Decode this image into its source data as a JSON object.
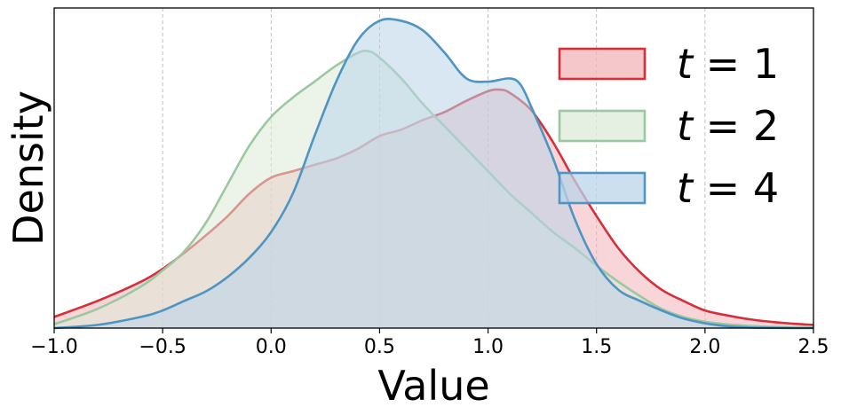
{
  "chart_data": {
    "type": "area",
    "title": "",
    "xlabel": "Value",
    "ylabel": "Density",
    "xlim": [
      -1.0,
      2.5
    ],
    "ylim": [
      0,
      1.0
    ],
    "x_ticks": [
      "−1.0",
      "−0.5",
      "0.0",
      "0.5",
      "1.0",
      "1.5",
      "2.0",
      "2.5"
    ],
    "x_tick_values": [
      -1.0,
      -0.5,
      0.0,
      0.5,
      1.0,
      1.5,
      2.0,
      2.5
    ],
    "show_y_ticks": false,
    "grid": {
      "x": true,
      "y": false,
      "style": "dashed"
    },
    "legend_placement": "top-right",
    "series": [
      {
        "name": "t = 1",
        "label_var": "t",
        "label_eq": " = 1",
        "color": "#d62f3a",
        "fill": "#f2b3b8",
        "x": [
          -1.0,
          -0.8,
          -0.6,
          -0.5,
          -0.4,
          -0.3,
          -0.2,
          -0.1,
          0.0,
          0.1,
          0.2,
          0.3,
          0.4,
          0.5,
          0.6,
          0.7,
          0.8,
          0.9,
          1.0,
          1.05,
          1.1,
          1.2,
          1.3,
          1.4,
          1.5,
          1.6,
          1.7,
          1.8,
          1.9,
          2.0,
          2.1,
          2.2,
          2.3,
          2.4,
          2.5
        ],
        "y": [
          0.035,
          0.085,
          0.145,
          0.185,
          0.235,
          0.29,
          0.35,
          0.42,
          0.47,
          0.49,
          0.51,
          0.53,
          0.56,
          0.6,
          0.62,
          0.65,
          0.675,
          0.71,
          0.74,
          0.745,
          0.735,
          0.68,
          0.58,
          0.46,
          0.35,
          0.25,
          0.175,
          0.12,
          0.085,
          0.055,
          0.04,
          0.028,
          0.02,
          0.014,
          0.01
        ]
      },
      {
        "name": "t = 2",
        "label_var": "t",
        "label_eq": " = 2",
        "color": "#9cc8a1",
        "fill": "#dcebd9",
        "x": [
          -1.0,
          -0.8,
          -0.6,
          -0.5,
          -0.4,
          -0.3,
          -0.2,
          -0.1,
          0.0,
          0.1,
          0.2,
          0.3,
          0.4,
          0.45,
          0.5,
          0.6,
          0.7,
          0.8,
          0.9,
          1.0,
          1.1,
          1.2,
          1.3,
          1.4,
          1.5,
          1.6,
          1.7,
          1.8,
          1.9,
          2.0,
          2.1,
          2.2,
          2.3,
          2.4,
          2.5
        ],
        "y": [
          0.012,
          0.06,
          0.13,
          0.18,
          0.24,
          0.33,
          0.45,
          0.57,
          0.66,
          0.72,
          0.77,
          0.82,
          0.86,
          0.865,
          0.845,
          0.78,
          0.7,
          0.63,
          0.56,
          0.49,
          0.42,
          0.36,
          0.3,
          0.25,
          0.195,
          0.145,
          0.1,
          0.06,
          0.035,
          0.02,
          0.012,
          0.007,
          0.004,
          0.002,
          0.001
        ]
      },
      {
        "name": "t = 4",
        "label_var": "t",
        "label_eq": " = 4",
        "color": "#4f95c2",
        "fill": "#bad4ea",
        "x": [
          -1.0,
          -0.8,
          -0.6,
          -0.5,
          -0.4,
          -0.3,
          -0.2,
          -0.1,
          0.0,
          0.1,
          0.2,
          0.3,
          0.4,
          0.5,
          0.6,
          0.7,
          0.8,
          0.9,
          1.0,
          1.1,
          1.15,
          1.2,
          1.3,
          1.4,
          1.5,
          1.6,
          1.7,
          1.8,
          1.9,
          2.0,
          2.1,
          2.2,
          2.3,
          2.4,
          2.5
        ],
        "y": [
          0.0,
          0.01,
          0.035,
          0.055,
          0.085,
          0.115,
          0.16,
          0.22,
          0.3,
          0.42,
          0.6,
          0.77,
          0.9,
          0.96,
          0.96,
          0.93,
          0.86,
          0.78,
          0.77,
          0.78,
          0.76,
          0.69,
          0.53,
          0.34,
          0.2,
          0.12,
          0.085,
          0.055,
          0.03,
          0.015,
          0.006,
          0.002,
          0.001,
          0.0,
          0.0
        ]
      }
    ]
  }
}
